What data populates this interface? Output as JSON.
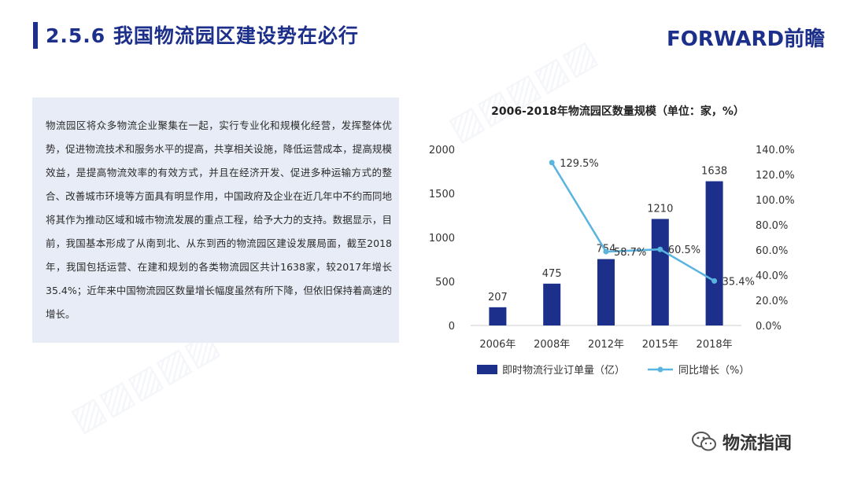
{
  "header": {
    "title": "2.5.6 我国物流园区建设势在必行",
    "logo_text": "FORWARD前瞻"
  },
  "content": {
    "paragraph": "物流园区将众多物流企业聚集在一起，实行专业化和规模化经营，发挥整体优势，促进物流技术和服务水平的提高，共享相关设施，降低运营成本，提高规模效益，是提高物流效率的有效方式，并且在经济开发、促进多种运输方式的整合、改善城市环境等方面具有明显作用，中国政府及企业在近几年中不约而同地将其作为推动区域和城市物流发展的重点工程，给予大力的支持。数据显示，目前，我国基本形成了从南到北、从东到西的物流园区建设发展局面，截至2018年，我国包括运营、在建和规划的各类物流园区共计1638家，较2017年增长35.4%；近年来中国物流园区数量增长幅度虽然有所下降，但依旧保持着高速的增长。"
  },
  "footer": {
    "brand": "物流指闻"
  },
  "colors": {
    "bar": "#1c2f8a",
    "line": "#5ab4e0",
    "accent": "#1c2f8a"
  },
  "chart_data": {
    "type": "bar",
    "title": "2006-2018年物流园区数量规模（单位：家，%）",
    "categories": [
      "2006年",
      "2008年",
      "2012年",
      "2015年",
      "2018年"
    ],
    "series": [
      {
        "name": "即时物流行业订单量（亿）",
        "type": "bar",
        "axis": "left",
        "values": [
          207,
          475,
          754,
          1210,
          1638
        ],
        "labels": [
          "207",
          "475",
          "754",
          "1210",
          "1638"
        ]
      },
      {
        "name": "同比增长（%）",
        "type": "line",
        "axis": "right",
        "values": [
          null,
          129.5,
          58.7,
          60.5,
          35.4
        ],
        "labels": [
          "",
          "129.5%",
          "58.7%",
          "60.5%",
          "35.4%"
        ]
      }
    ],
    "y_left": {
      "min": 0,
      "max": 2000,
      "ticks": [
        "0",
        "500",
        "1000",
        "1500",
        "2000"
      ]
    },
    "y_right": {
      "min": 0,
      "max": 140,
      "ticks": [
        "0.0%",
        "20.0%",
        "40.0%",
        "60.0%",
        "80.0%",
        "100.0%",
        "120.0%",
        "140.0%"
      ]
    },
    "legend_position": "bottom",
    "grid": false
  }
}
